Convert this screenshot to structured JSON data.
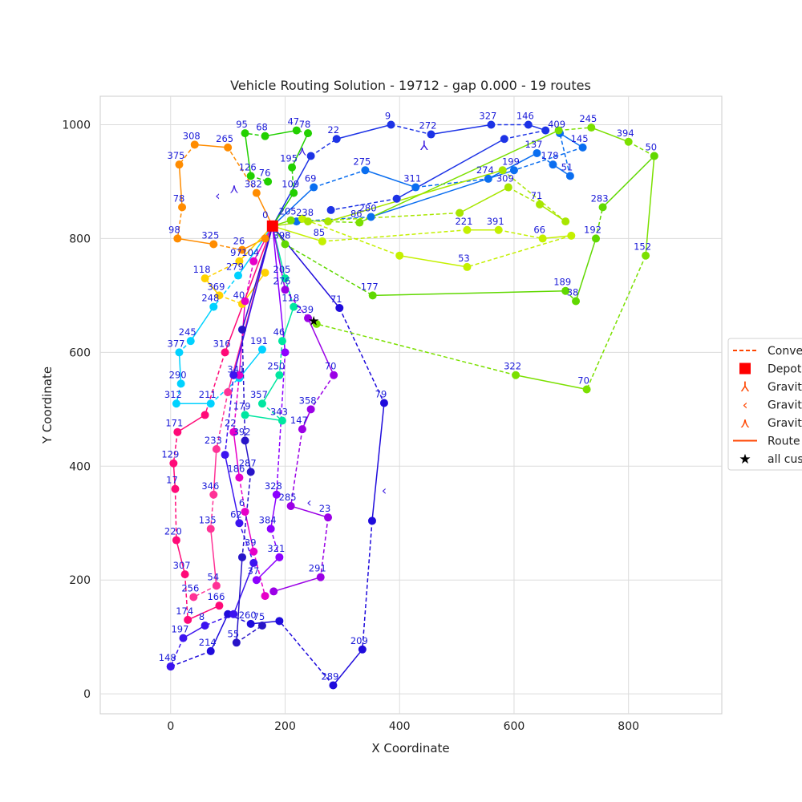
{
  "chart_data": {
    "type": "scatter",
    "title": "Vehicle Routing Solution - 19712 - gap 0.000 - 19 routes",
    "xlabel": "X Coordinate",
    "ylabel": "Y Coordinate",
    "xlim": [
      -123,
      963
    ],
    "ylim": [
      -35,
      1050
    ],
    "grid": true,
    "x_ticks": [
      0,
      200,
      400,
      600,
      800
    ],
    "y_ticks": [
      0,
      200,
      400,
      600,
      800,
      1000
    ],
    "depot": {
      "x": 178,
      "y": 822,
      "label": "0"
    },
    "legend": {
      "placement": "center-right",
      "entries": [
        {
          "label": "Conve",
          "marker": "dashed-line",
          "color": "#ff4500"
        },
        {
          "label": "Depot",
          "marker": "square",
          "color": "#ff0000"
        },
        {
          "label": "Gravit",
          "marker": "tri-down",
          "color": "#ff4500"
        },
        {
          "label": "Gravit",
          "marker": "tri-left",
          "color": "#ff4500"
        },
        {
          "label": "Gravit",
          "marker": "tri-up",
          "color": "#ff4500"
        },
        {
          "label": "Route",
          "marker": "line",
          "color": "#ff4500"
        },
        {
          "label": "all cus",
          "marker": "star",
          "color": "#000000"
        }
      ]
    },
    "star_marker": {
      "x": 250,
      "y": 655
    },
    "gravity_markers": [
      {
        "x": 443,
        "y": 964,
        "shape": "tri-down"
      },
      {
        "x": 373,
        "y": 358,
        "shape": "tri-left"
      },
      {
        "x": 242,
        "y": 337,
        "shape": "tri-left"
      },
      {
        "x": 82,
        "y": 876,
        "shape": "tri-left"
      },
      {
        "x": 111,
        "y": 889,
        "shape": "tri-up"
      },
      {
        "x": 230,
        "y": 955,
        "shape": "tri-up"
      }
    ],
    "routes": [
      {
        "name": "route-blue-east",
        "color": "#1f0bdc",
        "points": [
          {
            "x": 178,
            "y": 822
          },
          {
            "x": 295,
            "y": 678,
            "label": "71"
          },
          {
            "x": 373,
            "y": 511,
            "label": "79"
          },
          {
            "x": 352,
            "y": 304
          },
          {
            "x": 335,
            "y": 78,
            "label": "209"
          },
          {
            "x": 284,
            "y": 15,
            "label": "289"
          },
          {
            "x": 190,
            "y": 128
          },
          {
            "x": 140,
            "y": 123,
            "label": "260"
          },
          {
            "x": 100,
            "y": 140
          },
          {
            "x": 70,
            "y": 75,
            "label": "214"
          },
          {
            "x": 0,
            "y": 48,
            "label": "148"
          }
        ]
      },
      {
        "name": "route-blue-north",
        "color": "#1d33e6",
        "points": [
          {
            "x": 178,
            "y": 822
          },
          {
            "x": 245,
            "y": 945
          },
          {
            "x": 290,
            "y": 975,
            "label": "22"
          },
          {
            "x": 385,
            "y": 1000,
            "label": "9"
          },
          {
            "x": 455,
            "y": 983,
            "label": "272"
          },
          {
            "x": 560,
            "y": 1000,
            "label": "327"
          },
          {
            "x": 625,
            "y": 1000,
            "label": "146"
          },
          {
            "x": 655,
            "y": 990
          },
          {
            "x": 583,
            "y": 975
          },
          {
            "x": 395,
            "y": 870
          },
          {
            "x": 280,
            "y": 850
          }
        ]
      },
      {
        "name": "route-azure",
        "color": "#0a6ef0",
        "points": [
          {
            "x": 178,
            "y": 822
          },
          {
            "x": 250,
            "y": 890,
            "label": "69"
          },
          {
            "x": 340,
            "y": 920,
            "label": "275"
          },
          {
            "x": 428,
            "y": 890,
            "label": "311"
          },
          {
            "x": 555,
            "y": 905,
            "label": "274"
          },
          {
            "x": 640,
            "y": 950,
            "label": "137"
          },
          {
            "x": 668,
            "y": 930,
            "label": "178"
          },
          {
            "x": 698,
            "y": 910,
            "label": "51"
          },
          {
            "x": 680,
            "y": 985,
            "label": "409"
          },
          {
            "x": 720,
            "y": 960,
            "label": "145"
          },
          {
            "x": 600,
            "y": 920,
            "label": "199"
          },
          {
            "x": 350,
            "y": 838,
            "label": "280"
          },
          {
            "x": 220,
            "y": 830
          }
        ]
      },
      {
        "name": "route-lime",
        "color": "#c4f000",
        "points": [
          {
            "x": 178,
            "y": 822
          },
          {
            "x": 265,
            "y": 795,
            "label": "85"
          },
          {
            "x": 518,
            "y": 815,
            "label": "221"
          },
          {
            "x": 573,
            "y": 815,
            "label": "391"
          },
          {
            "x": 650,
            "y": 800,
            "label": "66"
          },
          {
            "x": 700,
            "y": 805
          },
          {
            "x": 518,
            "y": 750,
            "label": "53"
          },
          {
            "x": 400,
            "y": 770
          },
          {
            "x": 230,
            "y": 835
          }
        ]
      },
      {
        "name": "route-green-east",
        "color": "#7be000",
        "points": [
          {
            "x": 178,
            "y": 822
          },
          {
            "x": 210,
            "y": 832,
            "label": "205"
          },
          {
            "x": 330,
            "y": 828,
            "label": "86"
          },
          {
            "x": 678,
            "y": 990
          },
          {
            "x": 735,
            "y": 995,
            "label": "245"
          },
          {
            "x": 800,
            "y": 970,
            "label": "394"
          },
          {
            "x": 845,
            "y": 945,
            "label": "50"
          },
          {
            "x": 830,
            "y": 770,
            "label": "152"
          },
          {
            "x": 727,
            "y": 535,
            "label": "70"
          },
          {
            "x": 603,
            "y": 560,
            "label": "322"
          },
          {
            "x": 255,
            "y": 650
          }
        ]
      },
      {
        "name": "route-green-south",
        "color": "#60d800",
        "points": [
          {
            "x": 178,
            "y": 822
          },
          {
            "x": 200,
            "y": 790,
            "label": "398"
          },
          {
            "x": 353,
            "y": 700,
            "label": "177"
          },
          {
            "x": 690,
            "y": 708,
            "label": "189"
          },
          {
            "x": 708,
            "y": 690,
            "label": "38"
          },
          {
            "x": 743,
            "y": 800,
            "label": "192"
          },
          {
            "x": 755,
            "y": 855,
            "label": "283"
          },
          {
            "x": 845,
            "y": 945
          }
        ]
      },
      {
        "name": "route-green-north",
        "color": "#22d000",
        "points": [
          {
            "x": 178,
            "y": 822
          },
          {
            "x": 215,
            "y": 880,
            "label": "109"
          },
          {
            "x": 212,
            "y": 925,
            "label": "195"
          },
          {
            "x": 240,
            "y": 985,
            "label": "78"
          },
          {
            "x": 220,
            "y": 990,
            "label": "47"
          },
          {
            "x": 165,
            "y": 980,
            "label": "68"
          },
          {
            "x": 130,
            "y": 985,
            "label": "95"
          },
          {
            "x": 140,
            "y": 910,
            "label": "126"
          },
          {
            "x": 170,
            "y": 900,
            "label": "76"
          }
        ]
      },
      {
        "name": "route-orange",
        "color": "#ff8c00",
        "points": [
          {
            "x": 178,
            "y": 822
          },
          {
            "x": 150,
            "y": 880,
            "label": "382"
          },
          {
            "x": 100,
            "y": 960,
            "label": "265"
          },
          {
            "x": 42,
            "y": 965,
            "label": "308"
          },
          {
            "x": 15,
            "y": 930,
            "label": "375"
          },
          {
            "x": 20,
            "y": 855,
            "label": "78"
          },
          {
            "x": 12,
            "y": 800,
            "label": "98"
          },
          {
            "x": 75,
            "y": 790,
            "label": "325"
          },
          {
            "x": 125,
            "y": 780,
            "label": "26"
          },
          {
            "x": 165,
            "y": 800
          }
        ]
      },
      {
        "name": "route-gold",
        "color": "#ffd200",
        "points": [
          {
            "x": 178,
            "y": 822
          },
          {
            "x": 120,
            "y": 760,
            "label": "97"
          },
          {
            "x": 60,
            "y": 730,
            "label": "118"
          },
          {
            "x": 85,
            "y": 700,
            "label": "369"
          },
          {
            "x": 125,
            "y": 685,
            "label": "40"
          },
          {
            "x": 165,
            "y": 740
          }
        ]
      },
      {
        "name": "route-cyan",
        "color": "#00d2ff",
        "points": [
          {
            "x": 178,
            "y": 822
          },
          {
            "x": 118,
            "y": 735,
            "label": "279"
          },
          {
            "x": 75,
            "y": 680,
            "label": "248"
          },
          {
            "x": 35,
            "y": 620,
            "label": "245"
          },
          {
            "x": 15,
            "y": 600,
            "label": "377"
          },
          {
            "x": 18,
            "y": 545,
            "label": "290"
          },
          {
            "x": 10,
            "y": 510,
            "label": "312"
          },
          {
            "x": 70,
            "y": 510,
            "label": "211"
          },
          {
            "x": 120,
            "y": 555,
            "label": "341"
          },
          {
            "x": 160,
            "y": 605,
            "label": "191"
          }
        ]
      },
      {
        "name": "route-teal",
        "color": "#00e6a0",
        "points": [
          {
            "x": 178,
            "y": 822
          },
          {
            "x": 200,
            "y": 730,
            "label": "205"
          },
          {
            "x": 215,
            "y": 680,
            "label": "118"
          },
          {
            "x": 195,
            "y": 620,
            "label": "46"
          },
          {
            "x": 190,
            "y": 560,
            "label": "250"
          },
          {
            "x": 160,
            "y": 510,
            "label": "357"
          },
          {
            "x": 195,
            "y": 480,
            "label": "343"
          },
          {
            "x": 130,
            "y": 490,
            "label": "179"
          }
        ]
      },
      {
        "name": "route-violet",
        "color": "#9b00e6",
        "points": [
          {
            "x": 178,
            "y": 822
          },
          {
            "x": 200,
            "y": 710,
            "label": "276"
          },
          {
            "x": 240,
            "y": 660,
            "label": "239"
          },
          {
            "x": 285,
            "y": 560,
            "label": "70"
          },
          {
            "x": 245,
            "y": 500,
            "label": "358"
          },
          {
            "x": 230,
            "y": 465,
            "label": "147"
          },
          {
            "x": 210,
            "y": 330,
            "label": "285"
          },
          {
            "x": 275,
            "y": 310,
            "label": "23"
          },
          {
            "x": 262,
            "y": 205,
            "label": "291"
          },
          {
            "x": 180,
            "y": 180
          }
        ]
      },
      {
        "name": "route-magenta",
        "color": "#e600c8",
        "points": [
          {
            "x": 178,
            "y": 822
          },
          {
            "x": 145,
            "y": 760,
            "label": "104"
          },
          {
            "x": 130,
            "y": 690
          },
          {
            "x": 120,
            "y": 560
          },
          {
            "x": 110,
            "y": 460,
            "label": "22"
          },
          {
            "x": 120,
            "y": 380,
            "label": "186"
          },
          {
            "x": 130,
            "y": 320,
            "label": "6"
          },
          {
            "x": 145,
            "y": 250,
            "label": "39"
          },
          {
            "x": 165,
            "y": 172
          }
        ]
      },
      {
        "name": "route-pink",
        "color": "#ff0a78",
        "points": [
          {
            "x": 178,
            "y": 822
          },
          {
            "x": 95,
            "y": 600,
            "label": "316"
          },
          {
            "x": 60,
            "y": 490
          },
          {
            "x": 12,
            "y": 460,
            "label": "171"
          },
          {
            "x": 5,
            "y": 405,
            "label": "129"
          },
          {
            "x": 8,
            "y": 360,
            "label": "17"
          },
          {
            "x": 10,
            "y": 270,
            "label": "220"
          },
          {
            "x": 25,
            "y": 210,
            "label": "307"
          },
          {
            "x": 30,
            "y": 130,
            "label": "174"
          },
          {
            "x": 85,
            "y": 155,
            "label": "166"
          }
        ]
      },
      {
        "name": "route-rose",
        "color": "#ff3296",
        "points": [
          {
            "x": 178,
            "y": 822
          },
          {
            "x": 100,
            "y": 530
          },
          {
            "x": 80,
            "y": 430,
            "label": "233"
          },
          {
            "x": 75,
            "y": 350,
            "label": "346"
          },
          {
            "x": 70,
            "y": 290,
            "label": "135"
          },
          {
            "x": 80,
            "y": 190,
            "label": "54"
          },
          {
            "x": 40,
            "y": 170,
            "label": "256"
          }
        ]
      },
      {
        "name": "route-indigo",
        "color": "#3c14f0",
        "points": [
          {
            "x": 178,
            "y": 822
          },
          {
            "x": 110,
            "y": 560
          },
          {
            "x": 95,
            "y": 420
          },
          {
            "x": 120,
            "y": 300,
            "label": "62"
          },
          {
            "x": 145,
            "y": 230
          },
          {
            "x": 110,
            "y": 140
          },
          {
            "x": 60,
            "y": 120,
            "label": "8"
          },
          {
            "x": 22,
            "y": 98,
            "label": "197"
          },
          {
            "x": 0,
            "y": 48
          }
        ]
      },
      {
        "name": "route-purple",
        "color": "#8c00ff",
        "points": [
          {
            "x": 178,
            "y": 822
          },
          {
            "x": 200,
            "y": 600
          },
          {
            "x": 185,
            "y": 350,
            "label": "328"
          },
          {
            "x": 175,
            "y": 290,
            "label": "384"
          },
          {
            "x": 190,
            "y": 240,
            "label": "321"
          },
          {
            "x": 150,
            "y": 200,
            "label": "37"
          }
        ]
      },
      {
        "name": "route-navy",
        "color": "#2814c8",
        "points": [
          {
            "x": 178,
            "y": 822
          },
          {
            "x": 125,
            "y": 640
          },
          {
            "x": 130,
            "y": 445,
            "label": "392"
          },
          {
            "x": 140,
            "y": 390,
            "label": "287"
          },
          {
            "x": 125,
            "y": 240
          },
          {
            "x": 115,
            "y": 90,
            "label": "55"
          },
          {
            "x": 160,
            "y": 120,
            "label": "75"
          }
        ]
      },
      {
        "name": "route-yellowgreen",
        "color": "#a8e600",
        "points": [
          {
            "x": 178,
            "y": 822
          },
          {
            "x": 240,
            "y": 830,
            "label": "238"
          },
          {
            "x": 505,
            "y": 845
          },
          {
            "x": 590,
            "y": 890,
            "label": "309"
          },
          {
            "x": 645,
            "y": 860,
            "label": "71"
          },
          {
            "x": 690,
            "y": 830
          },
          {
            "x": 580,
            "y": 920
          },
          {
            "x": 275,
            "y": 830
          }
        ]
      }
    ]
  }
}
